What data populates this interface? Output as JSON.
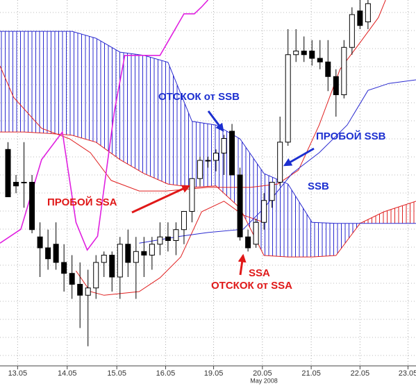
{
  "chart_data": {
    "type": "candlestick",
    "xlim": [
      -1,
      51
    ],
    "ylim": [
      0,
      100
    ],
    "xticks": [
      {
        "value": 1.2,
        "label": "13.05"
      },
      {
        "value": 7.4,
        "label": "14.05"
      },
      {
        "value": 13.6,
        "label": "15.05"
      },
      {
        "value": 19.7,
        "label": "16.05"
      },
      {
        "value": 25.7,
        "label": "19.05"
      },
      {
        "value": 31.8,
        "label": "20.05"
      },
      {
        "value": 37.9,
        "label": "21.05"
      },
      {
        "value": 44,
        "label": "22.05"
      },
      {
        "value": 50,
        "label": "23.05"
      }
    ],
    "xlabel": "May 2008",
    "candles": {
      "up_color": "#ffffff",
      "down_color": "#000000",
      "x": [
        0,
        1,
        2,
        3,
        4,
        5,
        6,
        7,
        8,
        9,
        10,
        11,
        12,
        13,
        14,
        15,
        16,
        17,
        18,
        19,
        20,
        21,
        22,
        23,
        24,
        25,
        26,
        27,
        28,
        29,
        30,
        31,
        32,
        33,
        34,
        35,
        36,
        37,
        38,
        39,
        40,
        41,
        42,
        43,
        44,
        45
      ],
      "open": [
        59,
        50,
        50,
        50,
        35,
        32,
        33,
        28,
        25,
        22,
        19,
        21,
        28,
        30,
        24,
        33,
        28,
        31,
        30,
        33,
        35,
        34,
        37,
        42,
        51,
        56,
        56,
        58,
        64,
        52,
        35,
        33,
        39,
        45,
        50,
        61,
        85,
        86,
        86,
        84,
        83,
        79,
        74,
        87,
        97,
        94
      ],
      "high": [
        61,
        52,
        61,
        52,
        39,
        37,
        39,
        33,
        30,
        28,
        26,
        30,
        31,
        31,
        35,
        37,
        35,
        35,
        35,
        39,
        39,
        39,
        42,
        51,
        57,
        57,
        59,
        63,
        66,
        54,
        37,
        40,
        47,
        50,
        68,
        92,
        92,
        90,
        89,
        89,
        89,
        81,
        89,
        98,
        100,
        100
      ],
      "low": [
        46,
        47,
        43,
        36,
        24,
        26,
        26,
        20,
        18,
        10,
        5,
        18,
        24,
        20,
        18,
        24,
        18,
        24,
        26,
        30,
        31,
        30,
        33,
        39,
        49,
        54,
        53,
        52,
        52,
        34,
        31,
        32,
        37,
        43,
        49,
        60,
        83,
        83,
        82,
        81,
        75,
        68,
        73,
        85,
        92,
        92
      ],
      "close": [
        46,
        49,
        50,
        37,
        32,
        29,
        28,
        25,
        22,
        19,
        21,
        28,
        30,
        24,
        33,
        28,
        31,
        30,
        33,
        35,
        34,
        37,
        42,
        51,
        56,
        56,
        58,
        62,
        52,
        35,
        32,
        39,
        45,
        50,
        61,
        85,
        86,
        85,
        84,
        83,
        79,
        74,
        87,
        96,
        93,
        99
      ]
    },
    "cloud": {
      "up_color": "#2a2ad0",
      "down_color": "#e02020",
      "x": [
        -1,
        2,
        5,
        8,
        11,
        14,
        17,
        20,
        23,
        26,
        29,
        32,
        35,
        38,
        41,
        44,
        47,
        51
      ],
      "ssa": [
        63.8,
        63.8,
        63.4,
        62.9,
        61,
        56.2,
        52.4,
        49.5,
        48.6,
        49,
        42.9,
        29.9,
        29.5,
        29.5,
        29.9,
        38.7,
        41.9,
        44.8
      ],
      "ssb": [
        91.4,
        91.4,
        91.4,
        91.4,
        89.5,
        85.7,
        84.8,
        82.9,
        66.7,
        65.7,
        61.9,
        52.4,
        49.5,
        39,
        38.7,
        38.7,
        38.7,
        38.7
      ]
    },
    "series": [
      {
        "color": "#e02020",
        "x": [
          -1,
          0.7,
          4.2,
          7.7,
          10.3,
          12.9,
          16.4,
          19.8,
          25,
          30.3,
          33.7,
          36.3,
          38.9,
          41.5,
          44.1,
          46.3,
          47.2
        ],
        "values": [
          81.9,
          73.3,
          64.8,
          61.9,
          58.1,
          50.5,
          47.6,
          47.6,
          48.6,
          48.6,
          49.5,
          53.3,
          65.7,
          81,
          88.6,
          95.2,
          100
        ]
      },
      {
        "color": "#e02020",
        "x": [
          8.5,
          10.3,
          12,
          16.4,
          19,
          21.6,
          24.2,
          27,
          29.4,
          32
        ],
        "values": [
          25.7,
          20,
          19,
          20,
          23.8,
          29.5,
          41.9,
          44.8,
          41,
          39
        ]
      },
      {
        "color": "#2a2ad0",
        "x": [
          16.4,
          21.6,
          25,
          29.4,
          32,
          35.5,
          38.9,
          42.4,
          45,
          47.6,
          51
        ],
        "values": [
          33.3,
          35.2,
          36.2,
          37.1,
          42.9,
          52.4,
          58.1,
          65.7,
          75.2,
          77.1,
          78.1
        ]
      },
      {
        "color": "#e020e0",
        "x": [
          -1,
          1.6,
          4.2,
          6.8,
          8.5,
          9.9,
          11.2,
          13.3,
          14.6,
          19,
          22,
          23.3,
          24.2,
          25
        ],
        "values": [
          33.3,
          37.1,
          56.2,
          63.8,
          39,
          31.4,
          35.2,
          69.5,
          84.8,
          84.8,
          96.2,
          96.2,
          98.1,
          100
        ]
      }
    ],
    "annotations": [
      {
        "text": "ОТСКОК от SSB",
        "color": "#1c2fd0"
      },
      {
        "text": "ПРОБОЙ SSB",
        "color": "#1c2fd0"
      },
      {
        "text": "SSB",
        "color": "#1c2fd0"
      },
      {
        "text": "ПРОБОЙ SSA",
        "color": "#e01818"
      },
      {
        "text": "SSA",
        "color": "#e01818"
      },
      {
        "text": "ОТСКОК от SSA",
        "color": "#e01818"
      }
    ]
  }
}
